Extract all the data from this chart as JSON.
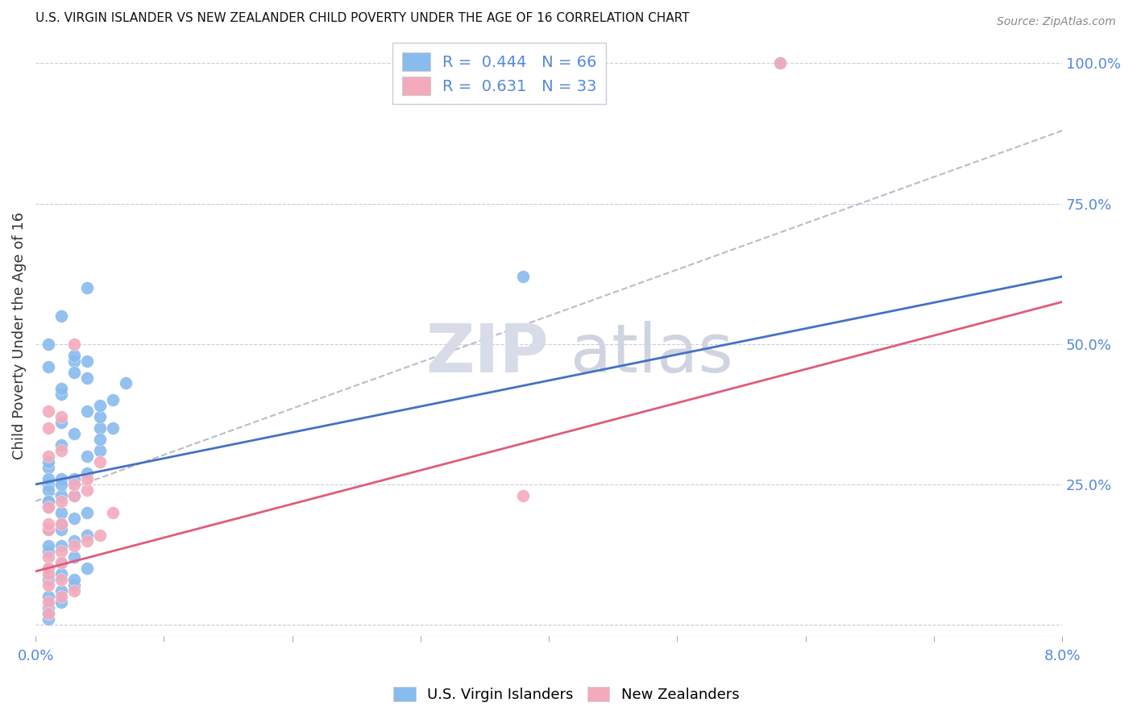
{
  "title": "U.S. VIRGIN ISLANDER VS NEW ZEALANDER CHILD POVERTY UNDER THE AGE OF 16 CORRELATION CHART",
  "source": "Source: ZipAtlas.com",
  "ylabel": "Child Poverty Under the Age of 16",
  "x_min": 0.0,
  "x_max": 0.08,
  "y_min": -0.02,
  "y_max": 1.05,
  "blue_color": "#88BBEE",
  "pink_color": "#F4AABC",
  "blue_line_color": "#4472C4",
  "pink_line_color": "#E05C7A",
  "dashed_line_color": "#BBBBCC",
  "blue_scatter_x": [
    0.001,
    0.003,
    0.004,
    0.002,
    0.005,
    0.006,
    0.001,
    0.002,
    0.003,
    0.004,
    0.001,
    0.002,
    0.003,
    0.004,
    0.005,
    0.006,
    0.007,
    0.001,
    0.002,
    0.003,
    0.004,
    0.005,
    0.001,
    0.002,
    0.003,
    0.004,
    0.005,
    0.001,
    0.002,
    0.003,
    0.004,
    0.005,
    0.001,
    0.002,
    0.003,
    0.001,
    0.002,
    0.003,
    0.004,
    0.001,
    0.002,
    0.003,
    0.001,
    0.001,
    0.001,
    0.002,
    0.001,
    0.002,
    0.001,
    0.002,
    0.003,
    0.002,
    0.004,
    0.038,
    0.001,
    0.001,
    0.003,
    0.002,
    0.002,
    0.001,
    0.058,
    0.001,
    0.004,
    0.001,
    0.001,
    0.002
  ],
  "blue_scatter_y": [
    0.28,
    0.47,
    0.47,
    0.32,
    0.35,
    0.35,
    0.25,
    0.26,
    0.26,
    0.27,
    0.22,
    0.23,
    0.23,
    0.3,
    0.31,
    0.4,
    0.43,
    0.17,
    0.18,
    0.19,
    0.2,
    0.37,
    0.13,
    0.14,
    0.15,
    0.16,
    0.33,
    0.1,
    0.11,
    0.12,
    0.38,
    0.39,
    0.08,
    0.09,
    0.34,
    0.05,
    0.06,
    0.07,
    0.44,
    0.03,
    0.04,
    0.45,
    0.02,
    0.29,
    0.46,
    0.36,
    0.24,
    0.41,
    0.21,
    0.42,
    0.48,
    0.55,
    0.6,
    0.62,
    0.01,
    0.5,
    0.08,
    0.2,
    0.17,
    0.14,
    1.0,
    0.02,
    0.1,
    0.26,
    0.22,
    0.25
  ],
  "pink_scatter_x": [
    0.001,
    0.002,
    0.003,
    0.004,
    0.005,
    0.006,
    0.001,
    0.002,
    0.003,
    0.004,
    0.001,
    0.002,
    0.003,
    0.004,
    0.005,
    0.001,
    0.002,
    0.001,
    0.002,
    0.003,
    0.001,
    0.002,
    0.003,
    0.001,
    0.002,
    0.001,
    0.002,
    0.001,
    0.038,
    0.058,
    0.001,
    0.001,
    0.001
  ],
  "pink_scatter_y": [
    0.12,
    0.13,
    0.14,
    0.15,
    0.16,
    0.2,
    0.21,
    0.22,
    0.23,
    0.24,
    0.17,
    0.18,
    0.25,
    0.26,
    0.29,
    0.1,
    0.11,
    0.3,
    0.31,
    0.5,
    0.04,
    0.05,
    0.06,
    0.07,
    0.08,
    0.09,
    0.37,
    0.35,
    0.23,
    1.0,
    0.02,
    0.38,
    0.18
  ],
  "blue_line_x": [
    0.0,
    0.08
  ],
  "blue_line_y": [
    0.25,
    0.62
  ],
  "pink_line_x": [
    0.0,
    0.08
  ],
  "pink_line_y": [
    0.095,
    0.575
  ],
  "dashed_line_x": [
    0.0,
    0.08
  ],
  "dashed_line_y": [
    0.22,
    0.88
  ],
  "y_ticks": [
    0.0,
    0.25,
    0.5,
    0.75,
    1.0
  ],
  "y_tick_labels": [
    "",
    "25.0%",
    "50.0%",
    "75.0%",
    "100.0%"
  ],
  "x_ticks": [
    0.0,
    0.01,
    0.02,
    0.03,
    0.04,
    0.05,
    0.06,
    0.07,
    0.08
  ],
  "right_axis_color": "#5588DD",
  "watermark_zip_color": "#D8DCE8",
  "watermark_atlas_color": "#D0D4E0"
}
